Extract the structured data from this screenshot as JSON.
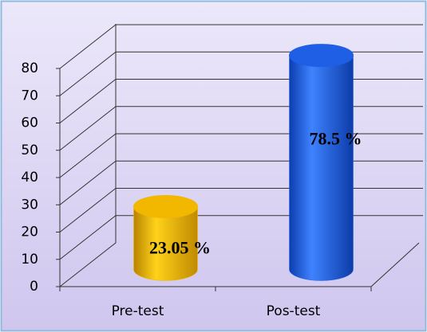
{
  "chart_data": {
    "type": "bar",
    "categories": [
      "Pre-test",
      "Pos-test"
    ],
    "values": [
      23.05,
      78.5
    ],
    "value_labels": [
      "23.05 %",
      "78.5 %"
    ],
    "colors": [
      "#f2b800",
      "#1e5fe6"
    ],
    "ylim": [
      0,
      80
    ],
    "yticks": [
      0,
      10,
      20,
      30,
      40,
      50,
      60,
      70,
      80
    ],
    "grid": true
  }
}
